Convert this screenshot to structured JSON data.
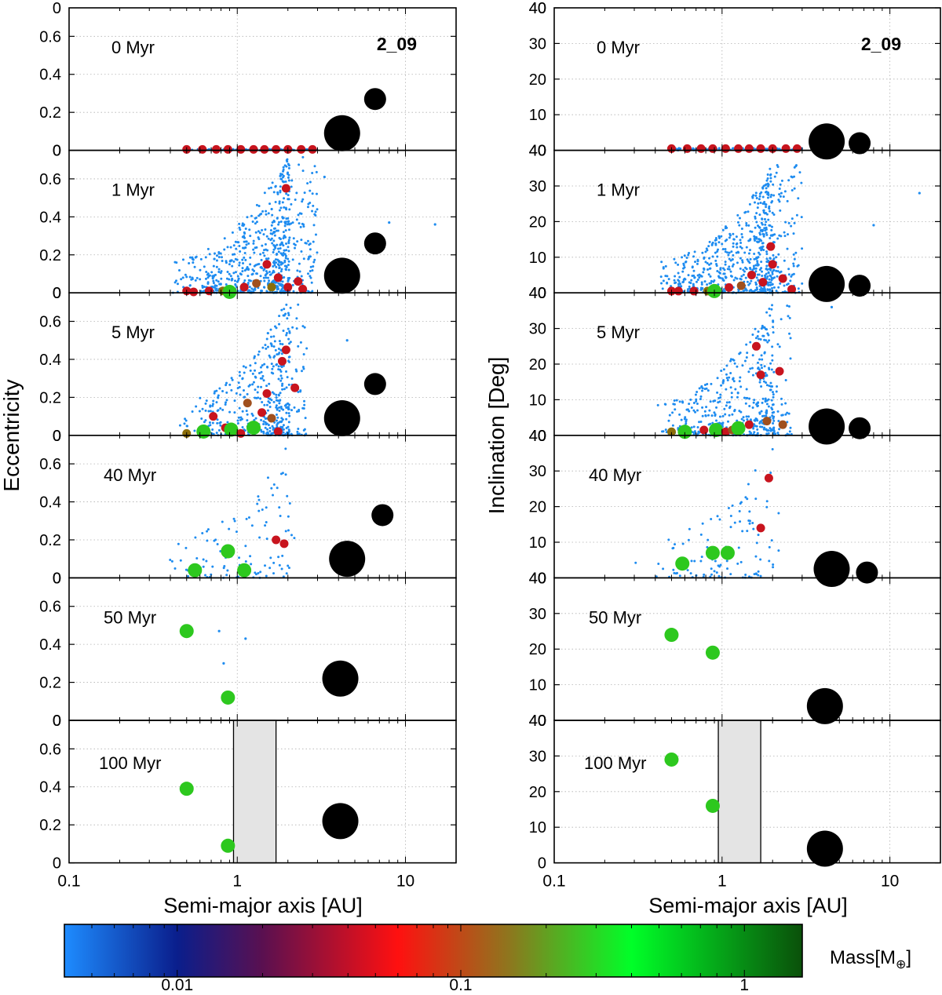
{
  "figure": {
    "run_label": "2_09",
    "xlabel": "Semi-major axis [AU]",
    "left_ylabel": "Eccentricity",
    "right_ylabel": "Inclination [Deg]",
    "colorbar_label_main": "Mass[M",
    "colorbar_label_sub": "⊕",
    "colorbar_label_close": "]",
    "colorbar_ticks": [
      "0.01",
      "0.1",
      "1"
    ],
    "x_ticks": [
      "0.1",
      "1",
      "10"
    ]
  },
  "colors": {
    "blue": "#1e8cf0",
    "red": "#c8141e",
    "olive": "#8c6e0a",
    "brown": "#a0501e",
    "green": "#2dc81e",
    "black": "#000000",
    "giant_zone": "#e4e4e4"
  },
  "chart_data": [
    {
      "type": "scatter",
      "xlabel": "Semi-major axis [AU]",
      "ylabel": "Eccentricity",
      "xscale": "log",
      "xlim": [
        0.1,
        20
      ],
      "ylim": [
        0,
        0.75
      ],
      "yticks": [
        "0",
        "0.2",
        "0.4",
        "0.6"
      ],
      "grid": true,
      "panels": [
        {
          "label": "0 Myr",
          "run": "2_09",
          "large_bodies": [
            {
              "a": 4.2,
              "y": 0.09,
              "size": "large"
            },
            {
              "a": 6.6,
              "y": 0.27,
              "size": "medium"
            }
          ],
          "embryos": [
            {
              "a": 0.5,
              "y": 0.005,
              "c": "red"
            },
            {
              "a": 0.62,
              "y": 0.005,
              "c": "red"
            },
            {
              "a": 0.75,
              "y": 0.005,
              "c": "red"
            },
            {
              "a": 0.88,
              "y": 0.005,
              "c": "red"
            },
            {
              "a": 1.05,
              "y": 0.005,
              "c": "red"
            },
            {
              "a": 1.25,
              "y": 0.005,
              "c": "red"
            },
            {
              "a": 1.45,
              "y": 0.005,
              "c": "red"
            },
            {
              "a": 1.7,
              "y": 0.005,
              "c": "red"
            },
            {
              "a": 2.0,
              "y": 0.005,
              "c": "red"
            },
            {
              "a": 2.4,
              "y": 0.005,
              "c": "red"
            },
            {
              "a": 2.8,
              "y": 0.005,
              "c": "red"
            }
          ],
          "planetesimals": {
            "count": 120,
            "a_range": [
              0.5,
              3.0
            ],
            "y_range": [
              0,
              0.006
            ]
          }
        },
        {
          "label": "1 Myr",
          "large_bodies": [
            {
              "a": 4.2,
              "y": 0.09,
              "size": "large"
            },
            {
              "a": 6.6,
              "y": 0.26,
              "size": "medium"
            }
          ],
          "embryos": [
            {
              "a": 0.5,
              "y": 0.01,
              "c": "red"
            },
            {
              "a": 0.55,
              "y": 0.005,
              "c": "red"
            },
            {
              "a": 0.68,
              "y": 0.01,
              "c": "red"
            },
            {
              "a": 0.82,
              "y": 0.01,
              "c": "olive"
            },
            {
              "a": 0.9,
              "y": 0.005,
              "c": "green"
            },
            {
              "a": 1.1,
              "y": 0.03,
              "c": "red"
            },
            {
              "a": 1.3,
              "y": 0.05,
              "c": "brown"
            },
            {
              "a": 1.5,
              "y": 0.15,
              "c": "red"
            },
            {
              "a": 1.6,
              "y": 0.03,
              "c": "olive"
            },
            {
              "a": 1.75,
              "y": 0.08,
              "c": "red"
            },
            {
              "a": 1.95,
              "y": 0.55,
              "c": "red"
            },
            {
              "a": 2.0,
              "y": 0.03,
              "c": "red"
            },
            {
              "a": 2.3,
              "y": 0.06,
              "c": "red"
            },
            {
              "a": 2.45,
              "y": 0.02,
              "c": "red"
            }
          ],
          "planetesimals": {
            "count": 700,
            "a_range": [
              0.4,
              3.0
            ],
            "y_range": [
              0,
              0.72
            ],
            "outliers": [
              {
                "a": 15.0,
                "y": 0.36
              },
              {
                "a": 8.0,
                "y": 0.37
              },
              {
                "a": 3.3,
                "y": 0.61
              }
            ]
          }
        },
        {
          "label": "5 Myr",
          "large_bodies": [
            {
              "a": 4.2,
              "y": 0.09,
              "size": "large"
            },
            {
              "a": 6.6,
              "y": 0.27,
              "size": "medium"
            }
          ],
          "embryos": [
            {
              "a": 0.5,
              "y": 0.01,
              "c": "olive"
            },
            {
              "a": 0.63,
              "y": 0.02,
              "c": "green"
            },
            {
              "a": 0.72,
              "y": 0.1,
              "c": "red"
            },
            {
              "a": 0.85,
              "y": 0.04,
              "c": "red"
            },
            {
              "a": 0.92,
              "y": 0.03,
              "c": "green"
            },
            {
              "a": 1.05,
              "y": 0.01,
              "c": "red"
            },
            {
              "a": 1.15,
              "y": 0.17,
              "c": "brown"
            },
            {
              "a": 1.25,
              "y": 0.04,
              "c": "green"
            },
            {
              "a": 1.4,
              "y": 0.12,
              "c": "red"
            },
            {
              "a": 1.5,
              "y": 0.22,
              "c": "red"
            },
            {
              "a": 1.6,
              "y": 0.09,
              "c": "brown"
            },
            {
              "a": 1.85,
              "y": 0.39,
              "c": "red"
            },
            {
              "a": 1.95,
              "y": 0.45,
              "c": "red"
            },
            {
              "a": 2.2,
              "y": 0.25,
              "c": "red"
            },
            {
              "a": 1.75,
              "y": 0.02,
              "c": "red"
            }
          ],
          "planetesimals": {
            "count": 450,
            "a_range": [
              0.45,
              2.6
            ],
            "y_range": [
              0,
              0.72
            ],
            "outliers": [
              {
                "a": 4.5,
                "y": 0.5
              }
            ]
          }
        },
        {
          "label": "40 Myr",
          "large_bodies": [
            {
              "a": 4.5,
              "y": 0.1,
              "size": "large"
            },
            {
              "a": 7.3,
              "y": 0.33,
              "size": "medium"
            }
          ],
          "embryos": [
            {
              "a": 0.56,
              "y": 0.04,
              "c": "green"
            },
            {
              "a": 0.88,
              "y": 0.14,
              "c": "green"
            },
            {
              "a": 1.1,
              "y": 0.04,
              "c": "green"
            },
            {
              "a": 1.7,
              "y": 0.2,
              "c": "red"
            },
            {
              "a": 1.9,
              "y": 0.18,
              "c": "red"
            }
          ],
          "planetesimals": {
            "count": 110,
            "a_range": [
              0.3,
              2.2
            ],
            "y_range": [
              0,
              0.7
            ]
          }
        },
        {
          "label": "50 Myr",
          "large_bodies": [
            {
              "a": 4.1,
              "y": 0.22,
              "size": "large"
            }
          ],
          "embryos": [
            {
              "a": 0.5,
              "y": 0.47,
              "c": "green"
            },
            {
              "a": 0.88,
              "y": 0.12,
              "c": "green"
            }
          ],
          "planetesimals": {
            "count": 3,
            "points": [
              {
                "a": 0.78,
                "y": 0.47
              },
              {
                "a": 0.83,
                "y": 0.3
              },
              {
                "a": 1.12,
                "y": 0.43
              }
            ]
          }
        },
        {
          "label": "100 Myr",
          "large_bodies": [
            {
              "a": 4.1,
              "y": 0.22,
              "size": "large"
            }
          ],
          "embryos": [
            {
              "a": 0.5,
              "y": 0.39,
              "c": "green"
            },
            {
              "a": 0.88,
              "y": 0.09,
              "c": "green"
            }
          ],
          "shaded_region": {
            "a_min": 0.95,
            "a_max": 1.7
          }
        }
      ]
    },
    {
      "type": "scatter",
      "xlabel": "Semi-major axis [AU]",
      "ylabel": "Inclination [Deg]",
      "xscale": "log",
      "xlim": [
        0.1,
        20
      ],
      "ylim": [
        0,
        40
      ],
      "yticks": [
        "0",
        "10",
        "20",
        "30",
        "40"
      ],
      "grid": true,
      "panels": [
        {
          "label": "0 Myr",
          "run": "2_09",
          "large_bodies": [
            {
              "a": 4.2,
              "y": 2.5,
              "size": "large"
            },
            {
              "a": 6.6,
              "y": 2.0,
              "size": "medium"
            }
          ],
          "embryos": [
            {
              "a": 0.5,
              "y": 0.5,
              "c": "red"
            },
            {
              "a": 0.62,
              "y": 0.5,
              "c": "red"
            },
            {
              "a": 0.75,
              "y": 0.5,
              "c": "red"
            },
            {
              "a": 0.88,
              "y": 0.5,
              "c": "red"
            },
            {
              "a": 1.05,
              "y": 0.5,
              "c": "red"
            },
            {
              "a": 1.25,
              "y": 0.5,
              "c": "red"
            },
            {
              "a": 1.45,
              "y": 0.5,
              "c": "red"
            },
            {
              "a": 1.7,
              "y": 0.5,
              "c": "red"
            },
            {
              "a": 2.0,
              "y": 0.5,
              "c": "red"
            },
            {
              "a": 2.4,
              "y": 0.5,
              "c": "red"
            },
            {
              "a": 2.8,
              "y": 0.5,
              "c": "red"
            }
          ],
          "planetesimals": {
            "count": 120,
            "a_range": [
              0.5,
              3.0
            ],
            "y_range": [
              0,
              0.6
            ]
          }
        },
        {
          "label": "1 Myr",
          "large_bodies": [
            {
              "a": 4.2,
              "y": 2.5,
              "size": "large"
            },
            {
              "a": 6.6,
              "y": 2.0,
              "size": "medium"
            }
          ],
          "embryos": [
            {
              "a": 0.5,
              "y": 0.5,
              "c": "red"
            },
            {
              "a": 0.55,
              "y": 0.5,
              "c": "red"
            },
            {
              "a": 0.68,
              "y": 0.5,
              "c": "red"
            },
            {
              "a": 0.82,
              "y": 0.5,
              "c": "olive"
            },
            {
              "a": 0.9,
              "y": 0.5,
              "c": "green"
            },
            {
              "a": 1.1,
              "y": 1.5,
              "c": "red"
            },
            {
              "a": 1.3,
              "y": 2.0,
              "c": "brown"
            },
            {
              "a": 1.5,
              "y": 5.0,
              "c": "red"
            },
            {
              "a": 1.75,
              "y": 3.0,
              "c": "red"
            },
            {
              "a": 1.95,
              "y": 13.0,
              "c": "red"
            },
            {
              "a": 2.0,
              "y": 8.0,
              "c": "red"
            },
            {
              "a": 2.3,
              "y": 4.0,
              "c": "red"
            },
            {
              "a": 2.6,
              "y": 1.0,
              "c": "red"
            }
          ],
          "planetesimals": {
            "count": 700,
            "a_range": [
              0.4,
              3.0
            ],
            "y_range": [
              0,
              36
            ],
            "outliers": [
              {
                "a": 15.0,
                "y": 28
              },
              {
                "a": 8.0,
                "y": 19
              }
            ]
          }
        },
        {
          "label": "5 Myr",
          "large_bodies": [
            {
              "a": 4.2,
              "y": 2.5,
              "size": "large"
            },
            {
              "a": 6.6,
              "y": 2.0,
              "size": "medium"
            }
          ],
          "embryos": [
            {
              "a": 0.5,
              "y": 1.0,
              "c": "olive"
            },
            {
              "a": 0.6,
              "y": 1.0,
              "c": "green"
            },
            {
              "a": 0.78,
              "y": 1.5,
              "c": "red"
            },
            {
              "a": 0.92,
              "y": 1.5,
              "c": "green"
            },
            {
              "a": 1.05,
              "y": 1.0,
              "c": "red"
            },
            {
              "a": 1.15,
              "y": 1.5,
              "c": "brown"
            },
            {
              "a": 1.25,
              "y": 2.0,
              "c": "green"
            },
            {
              "a": 1.45,
              "y": 3.0,
              "c": "red"
            },
            {
              "a": 1.6,
              "y": 25.0,
              "c": "red"
            },
            {
              "a": 1.7,
              "y": 17.0,
              "c": "red"
            },
            {
              "a": 1.85,
              "y": 4.0,
              "c": "brown"
            },
            {
              "a": 2.2,
              "y": 18.0,
              "c": "red"
            },
            {
              "a": 2.3,
              "y": 3.0,
              "c": "brown"
            }
          ],
          "planetesimals": {
            "count": 450,
            "a_range": [
              0.4,
              2.6
            ],
            "y_range": [
              0,
              38
            ],
            "outliers": [
              {
                "a": 4.5,
                "y": 36
              }
            ]
          }
        },
        {
          "label": "40 Myr",
          "large_bodies": [
            {
              "a": 4.5,
              "y": 2.5,
              "size": "large"
            },
            {
              "a": 7.3,
              "y": 1.5,
              "size": "medium"
            }
          ],
          "embryos": [
            {
              "a": 0.58,
              "y": 4.0,
              "c": "green"
            },
            {
              "a": 0.88,
              "y": 7.0,
              "c": "green"
            },
            {
              "a": 1.08,
              "y": 7.0,
              "c": "green"
            },
            {
              "a": 1.7,
              "y": 14.0,
              "c": "red"
            },
            {
              "a": 1.9,
              "y": 28.0,
              "c": "red"
            }
          ],
          "planetesimals": {
            "count": 110,
            "a_range": [
              0.3,
              2.2
            ],
            "y_range": [
              0,
              38
            ]
          }
        },
        {
          "label": "50 Myr",
          "large_bodies": [
            {
              "a": 4.1,
              "y": 4.0,
              "size": "large"
            }
          ],
          "embryos": [
            {
              "a": 0.5,
              "y": 24.0,
              "c": "green"
            },
            {
              "a": 0.88,
              "y": 19.0,
              "c": "green"
            }
          ]
        },
        {
          "label": "100 Myr",
          "large_bodies": [
            {
              "a": 4.1,
              "y": 4.0,
              "size": "large"
            }
          ],
          "embryos": [
            {
              "a": 0.5,
              "y": 29.0,
              "c": "green"
            },
            {
              "a": 0.88,
              "y": 16.0,
              "c": "green"
            }
          ],
          "shaded_region": {
            "a_min": 0.95,
            "a_max": 1.7
          }
        }
      ]
    },
    {
      "type": "colorbar",
      "label": "Mass[M⊕]",
      "scale": "log",
      "range": [
        0.004,
        1.6
      ],
      "ticks": [
        0.01,
        0.1,
        1
      ],
      "stops": [
        {
          "value": 0.004,
          "color": "#1e8cff"
        },
        {
          "value": 0.01,
          "color": "#0a1e8c"
        },
        {
          "value": 0.02,
          "color": "#5a1050"
        },
        {
          "value": 0.06,
          "color": "#ff1010"
        },
        {
          "value": 0.15,
          "color": "#8c781e"
        },
        {
          "value": 0.4,
          "color": "#00ff28"
        },
        {
          "value": 1.6,
          "color": "#0a500a"
        }
      ]
    }
  ]
}
